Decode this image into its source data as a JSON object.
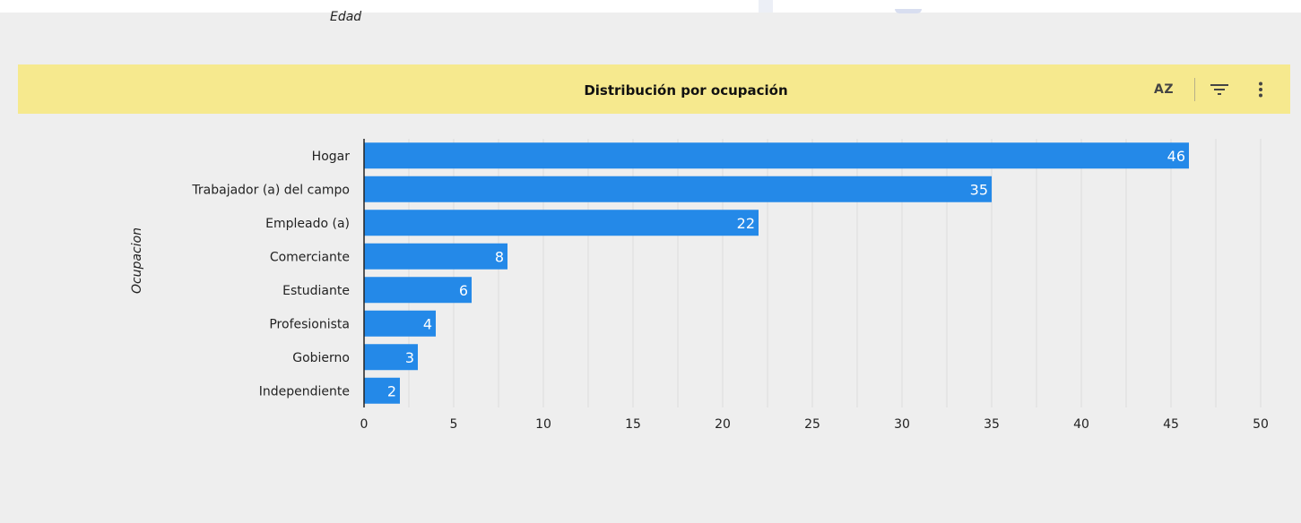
{
  "previous_chart": {
    "axis_label": "Edad"
  },
  "header": {
    "title": "Distribución por ocupación",
    "sort_icon": "sort-az-icon",
    "sort_label": "AZ",
    "filter_icon": "filter-icon",
    "more_icon": "more-vert-icon"
  },
  "colors": {
    "bar": "#2489e8",
    "header_bg": "#f6e98e",
    "background": "#eeeeee",
    "gridline": "#dcdcdc",
    "axis": "#222222"
  },
  "chart_data": {
    "type": "bar",
    "orientation": "horizontal",
    "title": "Distribución por ocupación",
    "xlabel": "",
    "ylabel": "Ocupacion",
    "categories": [
      "Hogar",
      "Trabajador (a) del campo",
      "Empleado (a)",
      "Comerciante",
      "Estudiante",
      "Profesionista",
      "Gobierno",
      "Independiente"
    ],
    "values": [
      46,
      35,
      22,
      8,
      6,
      4,
      3,
      2
    ],
    "xlim": [
      0,
      50
    ],
    "xticks": [
      0,
      5,
      10,
      15,
      20,
      25,
      30,
      35,
      40,
      45,
      50
    ],
    "grid": true,
    "data_labels": true,
    "legend": "none"
  }
}
